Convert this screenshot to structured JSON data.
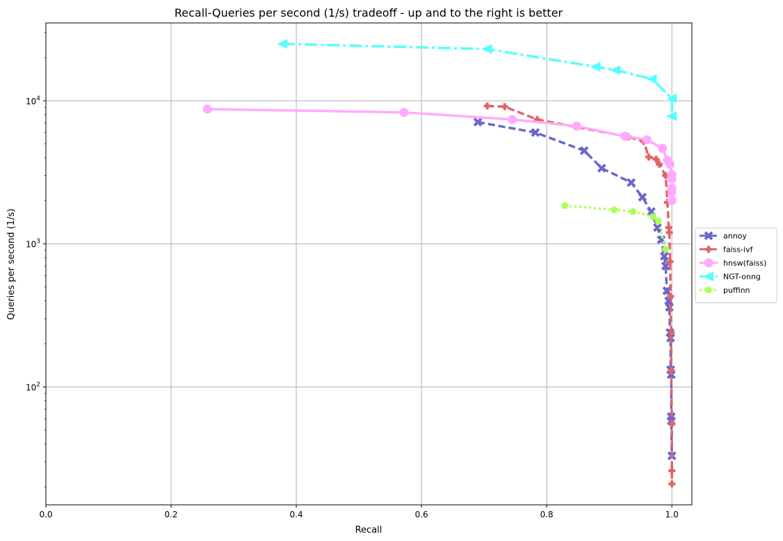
{
  "chart_data": {
    "type": "line",
    "title": "Recall-Queries per second (1/s) tradeoff - up and to the right is better",
    "xlabel": "Recall",
    "ylabel": "Queries per second (1/s)",
    "xlim": [
      0.0,
      1.032
    ],
    "ylim": [
      15,
      35000
    ],
    "yscale": "log",
    "grid": true,
    "legend_position": "right",
    "x_ticks": [
      {
        "value": 0.0,
        "label": "0.0"
      },
      {
        "value": 0.2,
        "label": "0.2"
      },
      {
        "value": 0.4,
        "label": "0.4"
      },
      {
        "value": 0.6,
        "label": "0.6"
      },
      {
        "value": 0.8,
        "label": "0.8"
      },
      {
        "value": 1.0,
        "label": "1.0"
      }
    ],
    "y_ticks": [
      {
        "value": 100,
        "base": "10",
        "exp": "2"
      },
      {
        "value": 1000,
        "base": "10",
        "exp": "3"
      },
      {
        "value": 10000,
        "base": "10",
        "exp": "4"
      }
    ],
    "series": [
      {
        "name": "annoy",
        "color": "#6b67cc",
        "dash": "10,5",
        "marker": "x",
        "points": [
          [
            0.69,
            7100
          ],
          [
            0.782,
            6000
          ],
          [
            0.86,
            4480
          ],
          [
            0.888,
            3380
          ],
          [
            0.935,
            2680
          ],
          [
            0.953,
            2120
          ],
          [
            0.967,
            1680
          ],
          [
            0.977,
            1300
          ],
          [
            0.983,
            1070
          ],
          [
            0.988,
            820
          ],
          [
            0.99,
            700
          ],
          [
            0.992,
            470
          ],
          [
            0.995,
            400
          ],
          [
            0.996,
            360
          ],
          [
            0.997,
            240
          ],
          [
            0.998,
            220
          ],
          [
            0.998,
            132
          ],
          [
            0.999,
            122
          ],
          [
            0.999,
            62
          ],
          [
            0.999,
            58
          ],
          [
            1.0,
            33
          ]
        ]
      },
      {
        "name": "faiss-ivf",
        "color": "#e06666",
        "dash": "10,5",
        "marker": "plus",
        "points": [
          [
            0.705,
            9200
          ],
          [
            0.733,
            9100
          ],
          [
            0.785,
            7400
          ],
          [
            0.93,
            5600
          ],
          [
            0.955,
            5200
          ],
          [
            0.963,
            4050
          ],
          [
            0.975,
            3900
          ],
          [
            0.98,
            3600
          ],
          [
            0.99,
            3000
          ],
          [
            0.993,
            1950
          ],
          [
            0.995,
            1300
          ],
          [
            0.996,
            1200
          ],
          [
            0.997,
            750
          ],
          [
            0.998,
            430
          ],
          [
            0.999,
            240
          ],
          [
            0.999,
            130
          ],
          [
            1.0,
            55
          ],
          [
            1.0,
            26
          ],
          [
            1.0,
            21
          ]
        ]
      },
      {
        "name": "hnsw(faiss)",
        "color": "#ffaaff",
        "dash": "",
        "marker": "circle",
        "points": [
          [
            0.258,
            8750
          ],
          [
            0.572,
            8300
          ],
          [
            0.745,
            7400
          ],
          [
            0.848,
            6650
          ],
          [
            0.925,
            5650
          ],
          [
            0.96,
            5350
          ],
          [
            0.985,
            4650
          ],
          [
            0.993,
            3850
          ],
          [
            0.997,
            3600
          ],
          [
            1.0,
            3050
          ],
          [
            1.0,
            2850
          ],
          [
            1.0,
            2450
          ],
          [
            1.0,
            2300
          ],
          [
            1.0,
            2010
          ]
        ]
      },
      {
        "name": "NGT-onng",
        "color": "#55ffff",
        "dash": "18,5,4,5",
        "marker": "triangle-left",
        "points": [
          [
            0.378,
            25000
          ],
          [
            0.705,
            23000
          ],
          [
            0.878,
            17300
          ],
          [
            0.91,
            16400
          ],
          [
            0.968,
            14200
          ],
          [
            1.0,
            10400
          ],
          [
            1.0,
            7800
          ]
        ]
      },
      {
        "name": "puffinn",
        "color": "#aaff55",
        "dash": "3,4",
        "marker": "pentagon",
        "points": [
          [
            0.829,
            1850
          ],
          [
            0.908,
            1730
          ],
          [
            0.938,
            1680
          ],
          [
            0.97,
            1550
          ],
          [
            0.978,
            1450
          ],
          [
            0.99,
            920
          ]
        ]
      }
    ]
  }
}
